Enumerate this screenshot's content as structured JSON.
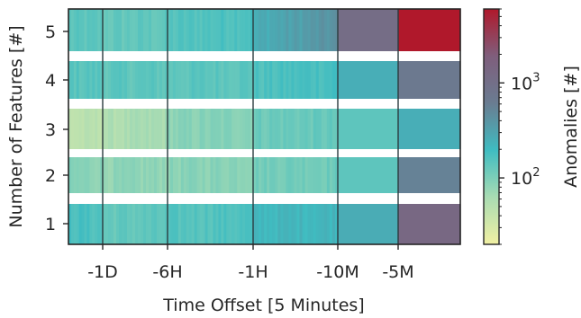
{
  "chart_data": {
    "type": "heatmap",
    "xlabel": "Time Offset [5 Minutes]",
    "ylabel": "Number of Features [#]",
    "x_ticks": [
      "-1D",
      "-6H",
      "-1H",
      "-10M",
      "-5M"
    ],
    "y_ticks": [
      "1",
      "2",
      "3",
      "4",
      "5"
    ],
    "colorbar": {
      "label": "Anomalies [#]",
      "scale": "log",
      "range": [
        20,
        6000
      ],
      "ticks": [
        {
          "value": 100,
          "label": "10",
          "exp": "2"
        },
        {
          "value": 1000,
          "label": "10",
          "exp": "3"
        }
      ],
      "colors": [
        "#f1f0a3",
        "#a9dcb3",
        "#3fbcc1",
        "#6a7c91",
        "#7f5e7c",
        "#b0182b"
      ]
    },
    "grid": false,
    "segments": [
      "pre -1D",
      "-1D to -6H",
      "-6H to -1H",
      "-1H to -10M",
      "-10M to -5M",
      "-5M to 0"
    ],
    "rows": [
      {
        "features": 5,
        "values": [
          140,
          130,
          150,
          250,
          1100,
          6000
        ]
      },
      {
        "features": 4,
        "values": [
          150,
          140,
          140,
          160,
          250,
          700
        ]
      },
      {
        "features": 3,
        "values": [
          45,
          55,
          85,
          120,
          140,
          250
        ]
      },
      {
        "features": 2,
        "values": [
          90,
          80,
          85,
          110,
          140,
          550
        ]
      },
      {
        "features": 1,
        "values": [
          180,
          130,
          150,
          210,
          260,
          1300
        ]
      }
    ]
  }
}
